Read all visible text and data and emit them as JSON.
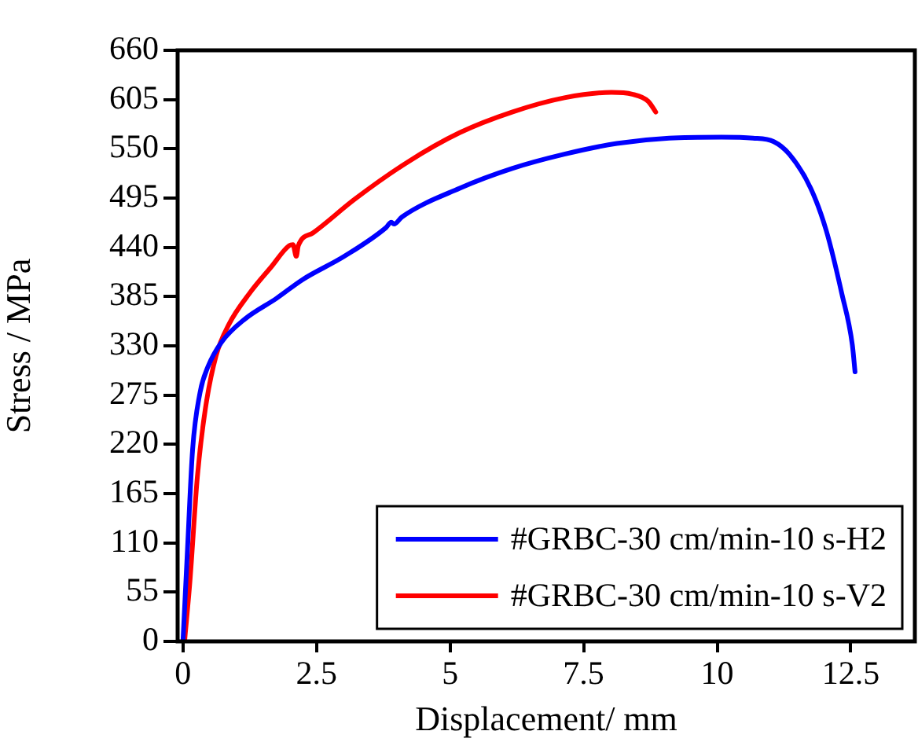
{
  "chart_data": {
    "type": "line",
    "xlabel": "Displacement/ mm",
    "ylabel": "Stress / MPa",
    "xlim": [
      -0.1,
      13.7
    ],
    "xticks": [
      {
        "value": 0,
        "label": "0"
      },
      {
        "value": 2.5,
        "label": "2.5"
      },
      {
        "value": 5,
        "label": "5"
      },
      {
        "value": 7.5,
        "label": "7.5"
      },
      {
        "value": 10,
        "label": "10"
      },
      {
        "value": 12.5,
        "label": "12.5"
      }
    ],
    "ylim": [
      0,
      660
    ],
    "yticks": [
      0,
      55,
      110,
      165,
      220,
      275,
      330,
      385,
      440,
      495,
      550,
      605,
      660
    ],
    "grid": false,
    "legend": "bottom right",
    "marker": "none",
    "line_style": "solid",
    "series": [
      {
        "name": "#GRBC-30 cm/min-10 s-H2",
        "color": "#0000ff",
        "x": [
          0,
          0.08,
          0.18,
          0.32,
          0.47,
          0.72,
          1.16,
          1.75,
          2.24,
          3.02,
          3.8,
          3.9,
          3.95,
          4.1,
          5.18,
          6.16,
          7.14,
          8.12,
          9.1,
          10.08,
          10.67,
          11.06,
          11.35,
          11.75,
          12.04,
          12.33,
          12.53,
          12.58
        ],
        "values": [
          0,
          97,
          214,
          278,
          307,
          334,
          360,
          383,
          404,
          430,
          462,
          468,
          466,
          474,
          506,
          528,
          544,
          556,
          562,
          563,
          562,
          558,
          544,
          506,
          459,
          389,
          331,
          301
        ]
      },
      {
        "name": "#GRBC-30 cm/min-10 s-V2",
        "color": "#ff0000",
        "x": [
          0.03,
          0.13,
          0.27,
          0.42,
          0.62,
          0.86,
          1.25,
          1.65,
          1.99,
          2.06,
          2.12,
          2.16,
          2.43,
          3.22,
          4.2,
          5.18,
          6.16,
          7.14,
          8.02,
          8.41,
          8.71,
          8.85
        ],
        "values": [
          0,
          67,
          184,
          260,
          319,
          354,
          389,
          418,
          442,
          443,
          430,
          442,
          456,
          494,
          535,
          568,
          591,
          607,
          613,
          611,
          603,
          591
        ]
      }
    ]
  }
}
